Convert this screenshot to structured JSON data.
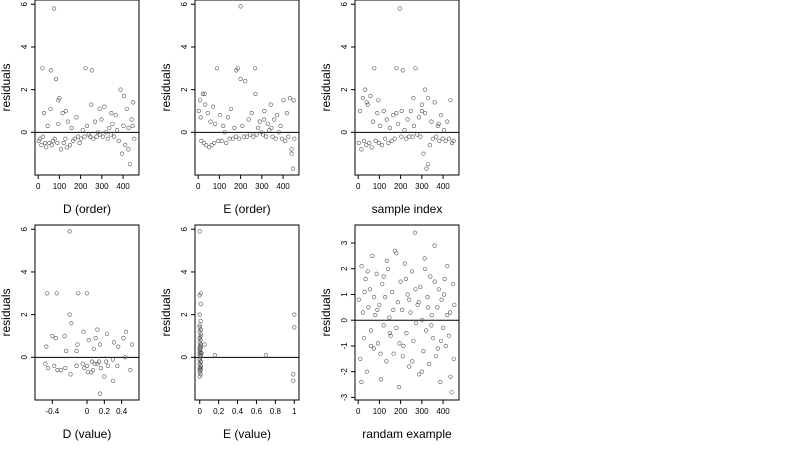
{
  "chart_data": [
    {
      "type": "scatter",
      "xlabel": "D (order)",
      "ylabel": "residuals",
      "xlim": [
        -15,
        475
      ],
      "ylim": [
        -2,
        6.2
      ],
      "xticks": [
        0,
        100,
        200,
        300,
        400
      ],
      "yticks": [
        0,
        2,
        4,
        6
      ],
      "hline": 0,
      "grid": false,
      "x": [
        3,
        9,
        15,
        22,
        27,
        33,
        38,
        45,
        52,
        58,
        63,
        70,
        75,
        78,
        84,
        90,
        95,
        100,
        108,
        115,
        120,
        128,
        135,
        140,
        150,
        158,
        165,
        172,
        180,
        188,
        195,
        202,
        210,
        218,
        223,
        230,
        238,
        245,
        252,
        260,
        268,
        275,
        282,
        290,
        298,
        305,
        312,
        320,
        328,
        335,
        342,
        350,
        358,
        365,
        372,
        380,
        388,
        395,
        402,
        410,
        418,
        425,
        432,
        440,
        447,
        453,
        20,
        60,
        95,
        130,
        250,
        290,
        345,
        405,
        425,
        445
      ],
      "y": [
        -0.4,
        -0.3,
        -0.6,
        -0.2,
        0.9,
        -0.5,
        -0.7,
        0.3,
        -0.5,
        1.1,
        -0.6,
        -0.4,
        5.8,
        -0.3,
        2.5,
        -0.5,
        0.4,
        1.6,
        -0.8,
        0.9,
        -0.5,
        -0.3,
        -0.7,
        0.5,
        -0.6,
        0.2,
        -0.4,
        -0.3,
        0.7,
        -0.2,
        -0.5,
        -0.3,
        0.1,
        -0.2,
        3.0,
        0.3,
        -0.1,
        -0.2,
        2.9,
        -0.3,
        0.5,
        -0.2,
        0.0,
        -0.1,
        0.6,
        -0.2,
        1.2,
        0.0,
        -0.3,
        0.2,
        -0.1,
        0.4,
        -0.2,
        0.8,
        0.1,
        -0.4,
        2.0,
        -1.0,
        0.3,
        -0.6,
        1.1,
        0.2,
        -1.5,
        0.6,
        1.4,
        -0.3,
        3.0,
        2.9,
        1.5,
        1.0,
        1.3,
        1.1,
        0.9,
        1.7,
        -0.8,
        0.3
      ]
    },
    {
      "type": "scatter",
      "xlabel": "E (order)",
      "ylabel": "residuals",
      "xlim": [
        -15,
        475
      ],
      "ylim": [
        -2,
        6.2
      ],
      "xticks": [
        0,
        100,
        200,
        300,
        400
      ],
      "yticks": [
        0,
        2,
        4,
        6
      ],
      "hline": 0,
      "grid": false,
      "x": [
        3,
        9,
        15,
        22,
        27,
        33,
        38,
        45,
        52,
        58,
        63,
        70,
        75,
        80,
        88,
        95,
        102,
        110,
        118,
        125,
        132,
        140,
        148,
        155,
        163,
        170,
        178,
        186,
        193,
        200,
        208,
        215,
        222,
        230,
        238,
        245,
        252,
        260,
        268,
        275,
        282,
        290,
        298,
        305,
        312,
        320,
        328,
        335,
        342,
        350,
        358,
        365,
        372,
        380,
        388,
        395,
        402,
        410,
        418,
        425,
        432,
        440,
        447,
        453,
        12,
        30,
        180,
        200,
        270,
        310,
        345,
        440,
        450
      ],
      "y": [
        1.0,
        1.5,
        -0.4,
        1.8,
        -0.5,
        1.3,
        -0.6,
        0.9,
        -0.7,
        0.5,
        -0.6,
        1.2,
        -0.5,
        0.4,
        3.0,
        -0.4,
        0.8,
        -0.4,
        0.3,
        0.0,
        -0.5,
        0.7,
        -0.3,
        1.1,
        -0.3,
        0.2,
        -0.2,
        3.0,
        -0.3,
        5.9,
        0.3,
        -0.2,
        2.4,
        -0.2,
        0.6,
        -0.1,
        0.9,
        -0.2,
        3.0,
        -0.1,
        0.2,
        0.5,
        0.0,
        -0.1,
        1.0,
        -0.2,
        0.4,
        0.1,
        1.3,
        -0.2,
        0.6,
        -0.3,
        0.8,
        0.0,
        0.3,
        -0.3,
        1.5,
        -0.4,
        0.9,
        -0.2,
        1.6,
        -0.8,
        -1.7,
        -0.3,
        0.7,
        1.8,
        2.9,
        2.5,
        1.8,
        0.6,
        0.2,
        -1.0,
        1.5
      ]
    },
    {
      "type": "scatter",
      "xlabel": "sample index",
      "ylabel": "residuals",
      "xlim": [
        -15,
        475
      ],
      "ylim": [
        -2,
        6.2
      ],
      "xticks": [
        0,
        100,
        200,
        300,
        400
      ],
      "yticks": [
        0,
        2,
        4,
        6
      ],
      "hline": 0,
      "grid": false,
      "x": [
        3,
        9,
        15,
        22,
        27,
        33,
        38,
        45,
        52,
        58,
        63,
        70,
        76,
        82,
        90,
        97,
        104,
        112,
        120,
        127,
        135,
        142,
        150,
        158,
        165,
        172,
        180,
        188,
        196,
        203,
        210,
        218,
        226,
        233,
        240,
        248,
        256,
        263,
        270,
        278,
        286,
        293,
        300,
        308,
        315,
        322,
        330,
        338,
        345,
        352,
        360,
        368,
        375,
        382,
        390,
        398,
        405,
        412,
        420,
        428,
        435,
        442,
        450,
        40,
        95,
        180,
        205,
        260,
        300,
        315,
        330,
        380
      ],
      "y": [
        -0.5,
        1.0,
        -0.8,
        1.6,
        -0.4,
        2.0,
        -0.6,
        1.3,
        -0.5,
        1.7,
        -0.7,
        0.5,
        3.0,
        -0.4,
        0.9,
        -0.5,
        0.3,
        -0.6,
        1.0,
        -0.3,
        0.6,
        -0.5,
        0.2,
        -0.4,
        0.8,
        -0.3,
        3.0,
        0.4,
        5.8,
        -0.2,
        2.9,
        0.1,
        -0.3,
        0.6,
        -0.2,
        1.0,
        -0.2,
        0.3,
        3.0,
        -0.1,
        0.7,
        -0.2,
        1.0,
        -1.0,
        2.0,
        -1.7,
        1.6,
        -0.6,
        0.5,
        -0.3,
        1.4,
        -0.2,
        0.3,
        -0.4,
        0.8,
        -0.3,
        0.1,
        -0.4,
        0.5,
        -0.3,
        1.5,
        -0.5,
        -0.4,
        1.4,
        1.5,
        0.9,
        1.0,
        1.6,
        1.3,
        0.9,
        -1.5,
        0.4
      ]
    },
    {
      "type": "scatter",
      "xlabel": "D (value)",
      "ylabel": "residuals",
      "xlim": [
        -0.6,
        0.6
      ],
      "ylim": [
        -2,
        6.2
      ],
      "xticks": [
        -0.4,
        0.0,
        0.2,
        0.4
      ],
      "yticks": [
        0,
        2,
        4,
        6
      ],
      "hline": 0,
      "grid": false,
      "x": [
        -0.48,
        -0.47,
        -0.46,
        -0.45,
        -0.38,
        -0.36,
        -0.35,
        -0.34,
        -0.26,
        -0.25,
        -0.24,
        -0.2,
        -0.19,
        -0.18,
        -0.12,
        -0.11,
        -0.1,
        -0.05,
        -0.04,
        -0.03,
        0.0,
        0.01,
        0.02,
        0.06,
        0.07,
        0.08,
        0.09,
        0.1,
        0.12,
        0.14,
        0.15,
        0.16,
        0.22,
        0.23,
        0.24,
        0.3,
        0.31,
        0.35,
        0.36,
        0.42,
        0.44,
        0.5,
        0.52,
        -0.2,
        -0.4,
        0.0,
        0.05,
        -0.3,
        -0.12,
        0.12,
        0.45,
        0.3,
        0.15,
        0.2
      ],
      "y": [
        -0.3,
        0.5,
        3.0,
        -0.5,
        -0.4,
        0.9,
        3.0,
        -0.6,
        1.0,
        -0.5,
        0.3,
        5.9,
        -0.8,
        1.6,
        -0.4,
        0.6,
        3.0,
        -0.3,
        1.2,
        -0.5,
        3.0,
        -0.7,
        0.8,
        -0.2,
        -0.6,
        0.4,
        -0.3,
        0.9,
        -0.3,
        -0.2,
        0.6,
        -0.5,
        -0.2,
        1.1,
        -0.4,
        -0.1,
        0.7,
        -0.4,
        0.5,
        0.9,
        0.0,
        -0.6,
        0.6,
        2.0,
        1.0,
        -0.4,
        -0.7,
        -0.6,
        0.3,
        1.3,
        1.2,
        -1.1,
        -1.7,
        -0.9
      ]
    },
    {
      "type": "scatter",
      "xlabel": "E (value)",
      "ylabel": "residuals",
      "xlim": [
        -0.05,
        1.05
      ],
      "ylim": [
        -2,
        6.2
      ],
      "xticks": [
        0.0,
        0.2,
        0.4,
        0.6,
        0.8,
        1.0
      ],
      "yticks": [
        0,
        2,
        4,
        6
      ],
      "hline": 0,
      "grid": false,
      "x": [
        0.0,
        0.01,
        0.0,
        0.01,
        0.0,
        0.01,
        0.0,
        0.01,
        0.0,
        0.01,
        0.0,
        0.01,
        0.0,
        0.01,
        0.0,
        0.01,
        0.0,
        0.01,
        0.0,
        0.01,
        0.0,
        0.01,
        0.0,
        0.01,
        0.0,
        0.01,
        0.0,
        0.01,
        0.0,
        0.01,
        0.0,
        0.01,
        0.0,
        0.01,
        0.0,
        0.01,
        0.0,
        0.01,
        0.0,
        0.01,
        0.0,
        0.01,
        0.0,
        0.02,
        0.05,
        0.16,
        0.7,
        1.0,
        1.0,
        0.99,
        0.99
      ],
      "y": [
        5.9,
        3.0,
        2.0,
        1.7,
        1.5,
        1.3,
        1.2,
        1.0,
        0.9,
        0.8,
        0.7,
        0.6,
        0.5,
        0.4,
        0.3,
        0.2,
        0.1,
        0.0,
        -0.1,
        -0.2,
        -0.3,
        -0.4,
        -0.5,
        -0.6,
        -0.7,
        -0.8,
        -0.9,
        -0.5,
        -0.3,
        -0.2,
        -0.1,
        0.1,
        0.4,
        0.6,
        0.9,
        1.1,
        -0.6,
        -0.4,
        0.2,
        0.5,
        2.9,
        2.5,
        1.4,
        0.2,
        0.6,
        0.1,
        0.1,
        2.0,
        1.4,
        -0.8,
        -1.1
      ]
    },
    {
      "type": "scatter",
      "xlabel": "randam example",
      "ylabel": "residuals",
      "xlim": [
        -15,
        475
      ],
      "ylim": [
        -3.1,
        3.7
      ],
      "xticks": [
        0,
        100,
        200,
        300,
        400
      ],
      "yticks": [
        -3,
        -2,
        -1,
        0,
        1,
        2,
        3
      ],
      "hline": 0,
      "grid": false,
      "x": [
        3,
        10,
        16,
        22,
        28,
        35,
        41,
        48,
        55,
        61,
        67,
        74,
        80,
        87,
        93,
        100,
        107,
        113,
        120,
        127,
        133,
        140,
        147,
        153,
        160,
        167,
        173,
        180,
        187,
        193,
        200,
        207,
        213,
        220,
        227,
        233,
        240,
        247,
        253,
        260,
        267,
        273,
        280,
        287,
        293,
        300,
        307,
        313,
        320,
        327,
        333,
        340,
        347,
        353,
        360,
        367,
        373,
        380,
        387,
        393,
        400,
        407,
        413,
        420,
        427,
        433,
        440,
        447,
        453,
        15,
        45,
        75,
        105,
        135,
        165,
        195,
        225,
        255,
        285,
        315,
        345,
        375,
        405,
        435,
        30,
        60,
        90,
        120,
        150,
        180,
        210,
        240,
        270,
        300,
        330,
        360,
        390,
        420,
        450
      ],
      "y": [
        0.8,
        -1.5,
        2.1,
        0.3,
        -0.7,
        1.6,
        -2.0,
        0.5,
        1.2,
        -0.4,
        2.5,
        -1.1,
        0.2,
        1.8,
        -0.9,
        0.6,
        -2.3,
        1.4,
        -0.2,
        0.9,
        -1.6,
        2.0,
        0.1,
        -0.6,
        1.1,
        -1.3,
        2.7,
        -0.3,
        0.7,
        -2.6,
        1.5,
        0.4,
        -1.0,
        2.2,
        -0.5,
        1.0,
        -1.8,
        0.3,
        1.9,
        -0.8,
        3.4,
        -0.1,
        0.6,
        -2.1,
        1.3,
        0.0,
        -1.2,
        2.4,
        -0.4,
        0.9,
        -1.7,
        1.7,
        0.2,
        -0.7,
        2.9,
        -1.4,
        0.5,
        1.2,
        -2.4,
        0.8,
        -0.3,
        1.6,
        -1.0,
        2.1,
        -0.6,
        0.3,
        -2.8,
        1.4,
        0.6,
        -2.4,
        1.9,
        0.9,
        -1.3,
        2.3,
        0.4,
        -0.9,
        1.6,
        -1.6,
        0.7,
        2.0,
        -0.2,
        -1.1,
        1.0,
        -2.2,
        1.1,
        -1.0,
        0.4,
        1.7,
        -0.5,
        2.6,
        -1.4,
        0.8,
        1.2,
        -2.0,
        0.5,
        1.5,
        -0.8,
        0.2,
        -1.5
      ]
    }
  ]
}
